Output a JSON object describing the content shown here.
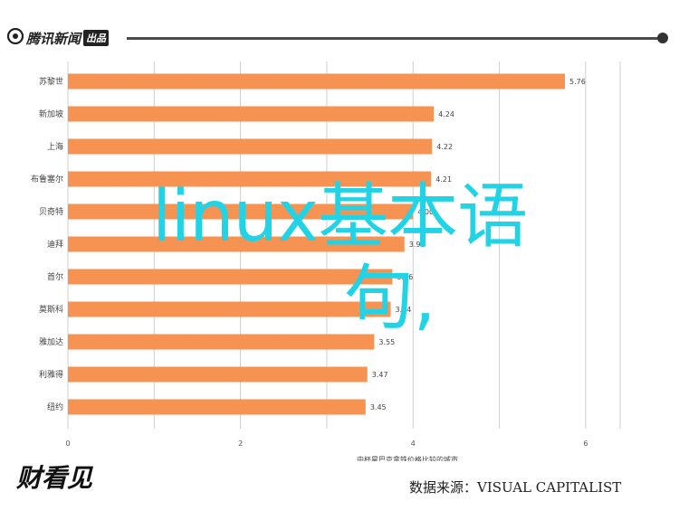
{
  "header": {
    "logo_text": "腾讯新闻",
    "logo_badge": "出品",
    "logo_icon": "tencent-news-logo-icon"
  },
  "overlay": {
    "title_line1": "linux基本语",
    "title_line2": "句,"
  },
  "footer": {
    "logo": "财看见",
    "source": "数据来源：VISUAL CAPITALIST"
  },
  "colors": {
    "bar": "#f79352",
    "overlay_text": "#22d3e6",
    "grid": "#cfcfcf"
  },
  "chart_data": {
    "type": "bar",
    "orientation": "horizontal",
    "categories": [
      "苏黎世",
      "新加坡",
      "上海",
      "布鲁塞尔",
      "贝奇特",
      "迪拜",
      "首尔",
      "莫斯科",
      "雅加达",
      "利雅得",
      "纽约"
    ],
    "values": [
      5.76,
      4.24,
      4.22,
      4.21,
      4.0,
      3.9,
      3.76,
      3.74,
      3.55,
      3.47,
      3.45
    ],
    "value_labels": [
      "5.76",
      "4.24",
      "4.22",
      "4.21",
      "4.00",
      "3.90",
      "3.76",
      "3.74",
      "3.55",
      "3.47",
      "3.45"
    ],
    "x_ticks": [
      0,
      2,
      4,
      6
    ],
    "xlim": [
      0,
      6.4
    ],
    "xlabel": "中杯星巴克拿铁价格比较的城市",
    "grid": true
  }
}
